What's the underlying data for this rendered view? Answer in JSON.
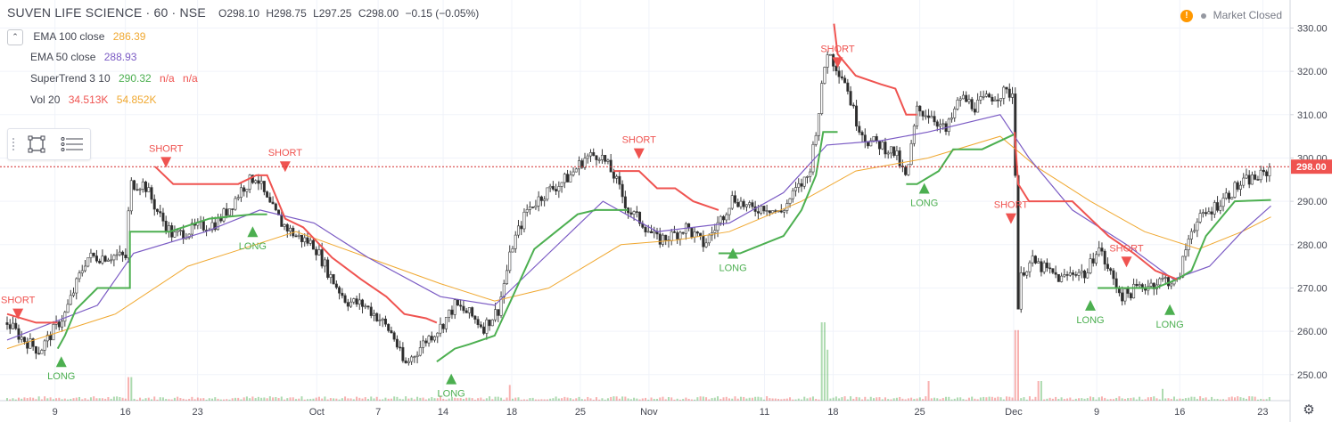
{
  "header": {
    "symbol": "SUVEN LIFE SCIENCE",
    "interval": "60",
    "exchange": "NSE",
    "ohlc": {
      "o": "O298.10",
      "h": "H298.75",
      "l": "L297.25",
      "c": "C298.00",
      "chg": "−0.15 (−0.05%)"
    }
  },
  "indicators": [
    {
      "name": "EMA 100 close",
      "values": [
        "286.39"
      ],
      "colors": [
        "#f0a830"
      ]
    },
    {
      "name": "EMA 50 close",
      "values": [
        "288.93"
      ],
      "colors": [
        "#7b5bc4"
      ]
    },
    {
      "name": "SuperTrend 3 10",
      "values": [
        "290.32",
        "n/a",
        "n/a"
      ],
      "colors": [
        "#4caf50",
        "#ef5350",
        "#ef5350"
      ]
    },
    {
      "name": "Vol 20",
      "values": [
        "34.513K",
        "54.852K"
      ],
      "colors": [
        "#ef5350",
        "#f0a830"
      ]
    }
  ],
  "legend_toggle_icon": "chevron-up-icon",
  "toolbox_icons": [
    "drag-handle-icon",
    "object-tree-icon",
    "data-window-icon"
  ],
  "market_status": "Market Closed",
  "current_price_label": "298.00",
  "settings_icon": "gear-icon",
  "chart_data": {
    "type": "candlestick",
    "y_axis": {
      "range": [
        244,
        334
      ],
      "ticks": [
        250,
        260,
        270,
        280,
        290,
        300,
        310,
        320,
        330
      ],
      "tick_labels": [
        "250.00",
        "260.00",
        "270.00",
        "280.00",
        "290.00",
        "300.00",
        "310.00",
        "320.00",
        "330.00"
      ]
    },
    "x_tick_labels": [
      "9",
      "16",
      "23",
      "Oct",
      "7",
      "14",
      "18",
      "25",
      "Nov",
      "11",
      "18",
      "25",
      "Dec",
      "9",
      "16",
      "23"
    ],
    "price_path": [
      [
        0,
        262
      ],
      [
        0.4,
        258.5
      ],
      [
        0.9,
        255.5
      ],
      [
        1.1,
        258
      ],
      [
        1.6,
        264
      ],
      [
        2.2,
        277
      ],
      [
        3.0,
        277.5
      ],
      [
        3.3,
        277
      ],
      [
        3.4,
        294
      ],
      [
        3.8,
        294
      ],
      [
        4.2,
        287
      ],
      [
        4.6,
        282
      ],
      [
        5.3,
        284
      ],
      [
        5.8,
        285
      ],
      [
        6.2,
        289
      ],
      [
        6.5,
        293
      ],
      [
        6.9,
        296
      ],
      [
        7.2,
        290
      ],
      [
        7.6,
        285
      ],
      [
        8.0,
        282
      ],
      [
        8.5,
        280
      ],
      [
        9.0,
        272
      ],
      [
        9.4,
        267
      ],
      [
        9.9,
        266
      ],
      [
        10.3,
        263
      ],
      [
        10.7,
        259
      ],
      [
        11.0,
        252
      ],
      [
        11.3,
        255
      ],
      [
        11.6,
        258
      ],
      [
        12.0,
        261
      ],
      [
        12.4,
        266
      ],
      [
        12.8,
        264
      ],
      [
        13.2,
        261
      ],
      [
        13.6,
        265
      ],
      [
        14.0,
        280
      ],
      [
        14.4,
        288
      ],
      [
        14.9,
        292
      ],
      [
        15.3,
        294
      ],
      [
        15.6,
        296
      ],
      [
        16.0,
        300
      ],
      [
        16.4,
        301
      ],
      [
        16.8,
        296
      ],
      [
        17.2,
        288
      ],
      [
        17.6,
        285
      ],
      [
        18.0,
        281
      ],
      [
        18.4,
        282
      ],
      [
        18.8,
        284
      ],
      [
        19.3,
        280
      ],
      [
        19.7,
        285
      ],
      [
        20.1,
        291
      ],
      [
        20.6,
        288
      ],
      [
        21.0,
        289
      ],
      [
        21.4,
        287
      ],
      [
        21.8,
        292
      ],
      [
        22.2,
        296
      ],
      [
        22.5,
        312
      ],
      [
        22.7,
        325
      ],
      [
        22.9,
        322
      ],
      [
        23.2,
        318
      ],
      [
        23.5,
        309
      ],
      [
        23.8,
        304
      ],
      [
        24.2,
        303
      ],
      [
        24.6,
        301
      ],
      [
        24.9,
        295
      ],
      [
        25.2,
        311
      ],
      [
        25.6,
        310
      ],
      [
        26.0,
        306
      ],
      [
        26.4,
        314
      ],
      [
        26.8,
        312
      ],
      [
        27.2,
        314
      ],
      [
        27.6,
        315
      ],
      [
        27.9,
        315
      ],
      [
        27.96,
        262
      ],
      [
        28.1,
        274
      ],
      [
        28.4,
        276
      ],
      [
        28.8,
        274
      ],
      [
        29.2,
        272
      ],
      [
        29.6,
        274
      ],
      [
        29.9,
        273
      ],
      [
        30.2,
        280
      ],
      [
        30.5,
        274
      ],
      [
        30.9,
        268
      ],
      [
        31.3,
        270
      ],
      [
        31.7,
        271
      ],
      [
        32.1,
        272
      ],
      [
        32.4,
        271
      ],
      [
        32.8,
        284
      ],
      [
        33.2,
        287
      ],
      [
        33.6,
        290
      ],
      [
        34.0,
        293
      ],
      [
        34.4,
        295
      ],
      [
        34.8,
        296
      ],
      [
        35.0,
        298
      ]
    ],
    "series": [
      {
        "name": "EMA 100 close",
        "color": "#f0a830",
        "points": [
          [
            0,
            256
          ],
          [
            3,
            264
          ],
          [
            5,
            275
          ],
          [
            6.5,
            279
          ],
          [
            8,
            283
          ],
          [
            10,
            277
          ],
          [
            12,
            271
          ],
          [
            13.5,
            267
          ],
          [
            15,
            270
          ],
          [
            17,
            280
          ],
          [
            18.5,
            281
          ],
          [
            20,
            283
          ],
          [
            22,
            290
          ],
          [
            23.5,
            297
          ],
          [
            25.5,
            300
          ],
          [
            27.5,
            305
          ],
          [
            28.5,
            298
          ],
          [
            30,
            290
          ],
          [
            31.5,
            283
          ],
          [
            33,
            279
          ],
          [
            34.2,
            283
          ],
          [
            35,
            286.39
          ]
        ]
      },
      {
        "name": "EMA 50 close",
        "color": "#7b5bc4",
        "points": [
          [
            0,
            258
          ],
          [
            2.5,
            266
          ],
          [
            3.5,
            278
          ],
          [
            5.5,
            283
          ],
          [
            7,
            288
          ],
          [
            8.5,
            285
          ],
          [
            10,
            277
          ],
          [
            12,
            268
          ],
          [
            13.5,
            266
          ],
          [
            15,
            278
          ],
          [
            16.5,
            290
          ],
          [
            18,
            283
          ],
          [
            20,
            285
          ],
          [
            21.5,
            292
          ],
          [
            22.7,
            303
          ],
          [
            24.2,
            304
          ],
          [
            25.5,
            306
          ],
          [
            27.5,
            310
          ],
          [
            28.3,
            300
          ],
          [
            29.5,
            288
          ],
          [
            31,
            280
          ],
          [
            32.3,
            272
          ],
          [
            33.3,
            275
          ],
          [
            34.2,
            283
          ],
          [
            35,
            288.93
          ]
        ]
      },
      {
        "name": "SuperTrend up",
        "color": "#4caf50",
        "points": [
          [
            1.4,
            256
          ],
          [
            1.9,
            265
          ],
          [
            2.5,
            270
          ],
          [
            3.4,
            270
          ],
          [
            3.4,
            283
          ],
          [
            4.5,
            283
          ],
          [
            5.6,
            286
          ],
          [
            6.8,
            287
          ],
          [
            7.3,
            287
          ]
        ],
        "segments": [
          [
            [
              1.4,
              256
            ],
            [
              1.6,
              259
            ],
            [
              1.9,
              265
            ],
            [
              2.5,
              270
            ],
            [
              3.4,
              270
            ],
            [
              3.4,
              283
            ],
            [
              4.5,
              283
            ],
            [
              5.6,
              286
            ],
            [
              6.8,
              287
            ],
            [
              7.2,
              287
            ]
          ],
          [
            [
              11.9,
              253
            ],
            [
              12.4,
              256
            ],
            [
              12.8,
              257
            ],
            [
              13.5,
              259
            ],
            [
              14.0,
              268
            ],
            [
              14.6,
              279
            ],
            [
              15.2,
              283
            ],
            [
              15.8,
              287
            ],
            [
              16.3,
              288
            ],
            [
              17.2,
              288
            ]
          ],
          [
            [
              19.7,
              278
            ],
            [
              20.3,
              278
            ],
            [
              21.5,
              282
            ],
            [
              22.0,
              288
            ],
            [
              22.4,
              296
            ],
            [
              22.6,
              306
            ],
            [
              23.0,
              306
            ]
          ],
          [
            [
              24.9,
              294
            ],
            [
              25.2,
              294
            ],
            [
              25.8,
              297
            ],
            [
              26.2,
              302
            ],
            [
              27.0,
              302
            ],
            [
              27.9,
              305.5
            ]
          ],
          [
            [
              30.2,
              270
            ],
            [
              31.2,
              270
            ],
            [
              31.8,
              270
            ],
            [
              32.4,
              272
            ],
            [
              32.8,
              274
            ],
            [
              33.2,
              282
            ],
            [
              33.6,
              286
            ],
            [
              34.0,
              290
            ],
            [
              35,
              290.32
            ]
          ]
        ]
      },
      {
        "name": "SuperTrend down",
        "color": "#ef5350",
        "segments": [
          [
            [
              0,
              264
            ],
            [
              0.8,
              262
            ],
            [
              1.0,
              262
            ],
            [
              1.4,
              262
            ]
          ],
          [
            [
              4.1,
              298
            ],
            [
              4.6,
              294
            ],
            [
              5.6,
              294
            ],
            [
              6.4,
              294
            ],
            [
              6.9,
              296
            ],
            [
              7.2,
              296
            ],
            [
              7.7,
              286
            ],
            [
              8.2,
              284
            ],
            [
              9.0,
              277
            ],
            [
              9.8,
              272
            ],
            [
              10.5,
              268
            ],
            [
              11.0,
              264
            ],
            [
              11.6,
              263
            ],
            [
              11.9,
              262
            ]
          ],
          [
            [
              16.8,
              297
            ],
            [
              17.5,
              297
            ],
            [
              18.0,
              293
            ],
            [
              18.5,
              293
            ],
            [
              19.0,
              290
            ],
            [
              19.7,
              288
            ]
          ],
          [
            [
              22.9,
              331
            ],
            [
              23.0,
              324
            ],
            [
              23.5,
              319
            ],
            [
              24.2,
              317
            ],
            [
              24.6,
              316
            ],
            [
              24.9,
              310
            ],
            [
              25.2,
              310
            ]
          ],
          [
            [
              27.9,
              306
            ],
            [
              28.0,
              294
            ],
            [
              28.3,
              290
            ],
            [
              29.5,
              290
            ],
            [
              30.5,
              282
            ],
            [
              31.2,
              278
            ],
            [
              31.8,
              274
            ],
            [
              32.4,
              272
            ]
          ]
        ]
      }
    ],
    "signals": [
      {
        "label": "SHORT",
        "x": 0.3,
        "y": 264,
        "type": "short"
      },
      {
        "label": "LONG",
        "x": 1.5,
        "y": 253,
        "type": "long"
      },
      {
        "label": "SHORT",
        "x": 4.4,
        "y": 299,
        "type": "short"
      },
      {
        "label": "LONG",
        "x": 6.8,
        "y": 283,
        "type": "long"
      },
      {
        "label": "SHORT",
        "x": 7.7,
        "y": 298,
        "type": "short"
      },
      {
        "label": "LONG",
        "x": 12.3,
        "y": 249,
        "type": "long"
      },
      {
        "label": "SHORT",
        "x": 17.5,
        "y": 301,
        "type": "short"
      },
      {
        "label": "LONG",
        "x": 20.1,
        "y": 278,
        "type": "long"
      },
      {
        "label": "SHORT",
        "x": 23.0,
        "y": 322,
        "type": "short"
      },
      {
        "label": "LONG",
        "x": 25.4,
        "y": 293,
        "type": "long"
      },
      {
        "label": "SHORT",
        "x": 27.8,
        "y": 286,
        "type": "short"
      },
      {
        "label": "LONG",
        "x": 30.0,
        "y": 266,
        "type": "long"
      },
      {
        "label": "SHORT",
        "x": 31.0,
        "y": 276,
        "type": "short"
      },
      {
        "label": "LONG",
        "x": 32.2,
        "y": 265,
        "type": "long"
      }
    ],
    "volume_spikes": [
      [
        3.4,
        0.3
      ],
      [
        22.6,
        1.0
      ],
      [
        22.7,
        0.65
      ],
      [
        27.96,
        0.9
      ],
      [
        25.5,
        0.25
      ],
      [
        13.9,
        0.2
      ],
      [
        28.6,
        0.25
      ],
      [
        32.0,
        0.15
      ]
    ],
    "current_price": 298.0
  }
}
